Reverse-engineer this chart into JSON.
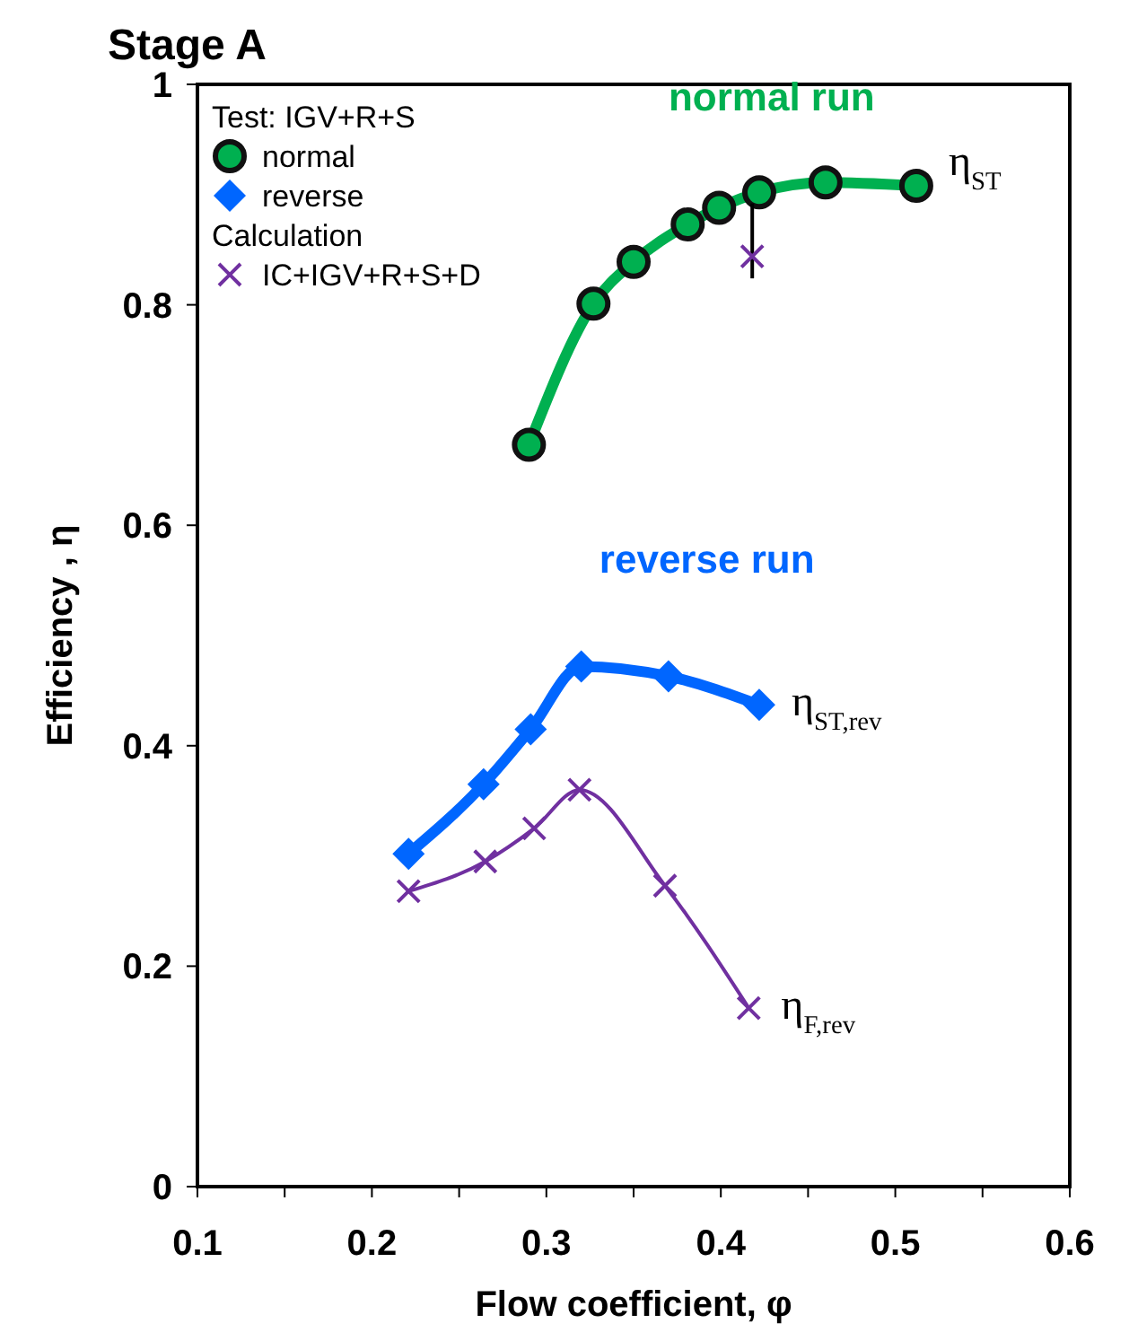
{
  "chart_data": {
    "type": "line",
    "title": "Stage A",
    "xlabel": "Flow coefficient, φ",
    "ylabel": "Efficiency , η",
    "legend_title": "Test: IGV+R+S",
    "legend": "top left",
    "grid": false,
    "xlim": [
      0.1,
      0.6
    ],
    "xticks": [
      {
        "value": 0.1,
        "label": "0.1"
      },
      {
        "value": 0.15,
        "label": null
      },
      {
        "value": 0.2,
        "label": "0.2"
      },
      {
        "value": 0.25,
        "label": null
      },
      {
        "value": 0.3,
        "label": "0.3"
      },
      {
        "value": 0.35,
        "label": null
      },
      {
        "value": 0.4,
        "label": "0.4"
      },
      {
        "value": 0.45,
        "label": null
      },
      {
        "value": 0.5,
        "label": "0.5"
      },
      {
        "value": 0.55,
        "label": null
      },
      {
        "value": 0.6,
        "label": "0.6"
      }
    ],
    "ylim": [
      0,
      1
    ],
    "yticks": [
      0,
      0.2,
      0.4,
      0.6,
      0.8,
      1
    ],
    "series": [
      {
        "name": "normal",
        "marker": "circle",
        "color": "#00b050",
        "x": [
          0.29,
          0.327,
          0.35,
          0.381,
          0.399,
          0.422,
          0.46,
          0.512
        ],
        "values": [
          0.673,
          0.801,
          0.839,
          0.873,
          0.888,
          0.902,
          0.911,
          0.908
        ]
      },
      {
        "name": "reverse",
        "marker": "diamond",
        "color": "#0066ff",
        "x": [
          0.221,
          0.264,
          0.291,
          0.32,
          0.37,
          0.422
        ],
        "values": [
          0.302,
          0.365,
          0.415,
          0.472,
          0.463,
          0.437
        ]
      },
      {
        "name": "IC+IGV+R+S+D",
        "marker": "cross",
        "color": "#7030a0",
        "x": [
          0.221,
          0.265,
          0.293,
          0.319,
          0.368,
          0.416
        ],
        "values": [
          0.268,
          0.295,
          0.325,
          0.36,
          0.273,
          0.162
        ]
      },
      {
        "type": "scatter",
        "marker": "cross",
        "color": "#7030a0",
        "x": [
          0.418
        ],
        "values": [
          0.844
        ],
        "errors": [
          [
            0.824,
            0.892
          ]
        ]
      }
    ],
    "annotations": [
      "normal  run",
      "reverse run",
      "η$_{ST}$",
      "η$_{ST,rev}$",
      "η$_{F,rev}$",
      "Calculation"
    ]
  }
}
